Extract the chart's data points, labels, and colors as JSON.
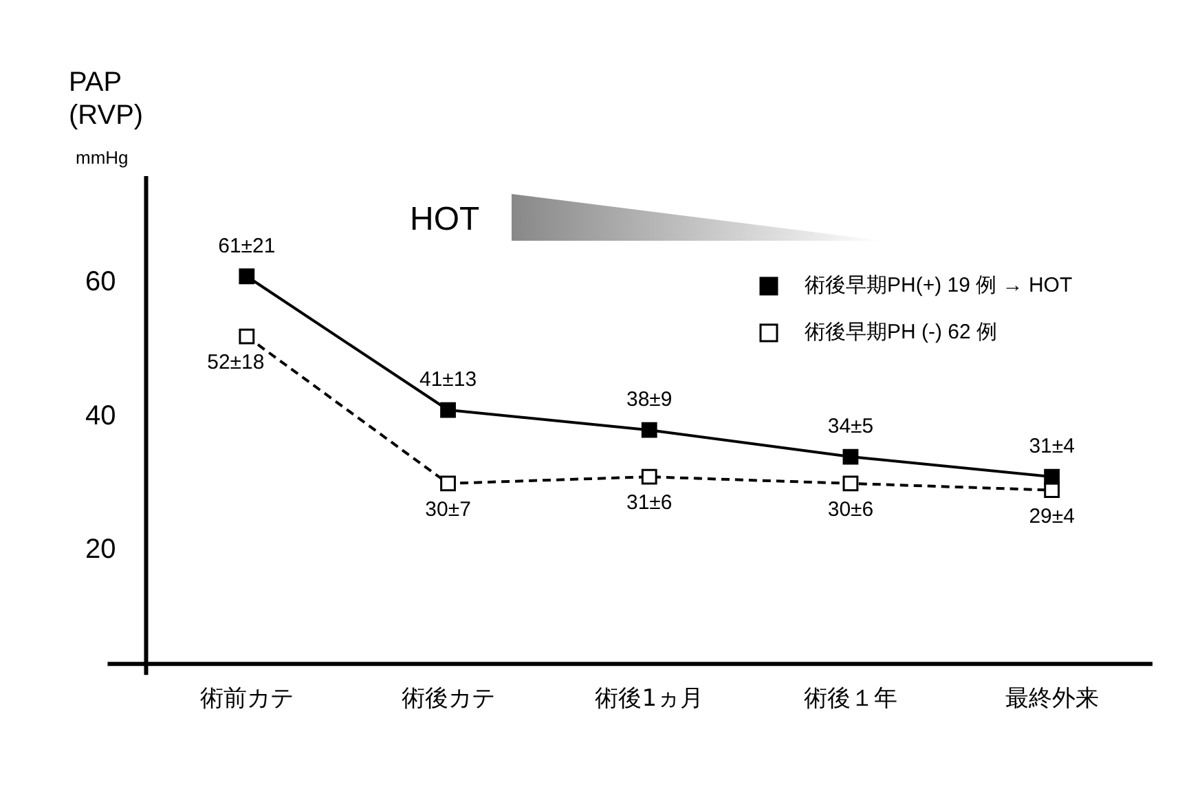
{
  "chart_data": {
    "type": "line",
    "ylabel": "PAP (RVP)",
    "annotations": [
      "mmHg",
      "HOT"
    ],
    "categories": [
      "術前カテ",
      "術後カテ",
      "術後1ヵ月",
      "術後１年",
      "最終外来"
    ],
    "series": [
      {
        "name": "術後早期PH(+) 19 例 → HOT",
        "color": "#000000",
        "values": [
          61,
          41,
          38,
          34,
          31
        ],
        "value_labels": [
          "61±21",
          "41±13",
          "38±9",
          "34±5",
          "31±4"
        ],
        "marker": "square",
        "line_style": "solid"
      },
      {
        "name": "術後早期PH (-) 62 例",
        "color": "#000000",
        "values": [
          52,
          30,
          31,
          30,
          29
        ],
        "value_labels": [
          "52±18",
          "30±7",
          "31±6",
          "30±6",
          "29±4"
        ],
        "marker": "square",
        "line_style": "dashed"
      }
    ],
    "ylim": [
      3,
      76
    ],
    "yticks": [
      20,
      40,
      60
    ],
    "grid": false,
    "legend": "top right"
  }
}
